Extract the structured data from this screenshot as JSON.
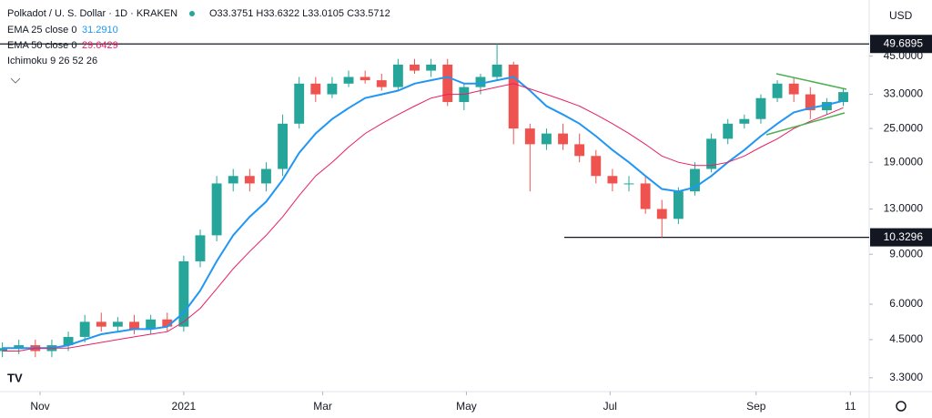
{
  "chart_data": {
    "type": "candlestick",
    "title": "Polkadot / U. S. Dollar · 1D · KRAKEN",
    "ohlc_label": "O33.3751 H33.6322 L33.0105 C33.5712",
    "currency": "USD",
    "x": [
      0,
      7,
      14,
      21,
      28,
      35,
      42,
      49,
      56,
      63,
      70,
      77,
      84,
      91,
      98,
      105,
      112,
      119,
      126,
      133,
      140,
      147,
      154,
      161,
      168,
      175,
      182,
      189,
      196,
      203,
      210,
      217,
      224,
      231,
      238,
      245,
      252,
      259,
      266,
      273,
      280,
      287,
      294,
      301,
      308,
      315,
      322,
      329,
      336,
      343,
      350,
      357
    ],
    "open": [
      4.1,
      4.2,
      4.3,
      4.1,
      4.3,
      4.6,
      5.2,
      5.0,
      5.2,
      4.9,
      5.3,
      5.0,
      8.5,
      10.5,
      16,
      17,
      16,
      18,
      26,
      36,
      33,
      36,
      38,
      37,
      35,
      42,
      40,
      42,
      31,
      35,
      38,
      42,
      25,
      22,
      24,
      22,
      20,
      17,
      16,
      16,
      13,
      12,
      15,
      18,
      23,
      26,
      27,
      32,
      36,
      33,
      29,
      31
    ],
    "high": [
      4.4,
      4.5,
      4.5,
      4.5,
      4.8,
      5.5,
      5.6,
      5.4,
      5.5,
      5.5,
      5.6,
      8.9,
      11,
      17,
      18,
      18,
      19,
      28,
      38,
      38,
      38,
      40,
      40,
      39,
      44,
      44,
      44,
      44,
      36,
      39,
      49.69,
      43,
      26,
      25,
      26,
      24,
      21,
      18,
      17,
      17,
      14,
      15.5,
      19,
      24,
      27,
      28,
      33,
      37,
      38,
      35,
      32,
      34.5
    ],
    "low": [
      3.9,
      4.0,
      3.9,
      3.9,
      4.1,
      4.4,
      4.8,
      4.8,
      4.7,
      4.7,
      4.8,
      4.8,
      8.1,
      10,
      15,
      15,
      15,
      17,
      25,
      31,
      32,
      35,
      36,
      34,
      34,
      39,
      38,
      30,
      29,
      33,
      37,
      22,
      15,
      21,
      21,
      19,
      16,
      15,
      15,
      12.5,
      10.33,
      11.5,
      14.5,
      17.5,
      22,
      25,
      26,
      31,
      31,
      27,
      28,
      30
    ],
    "close": [
      4.2,
      4.3,
      4.1,
      4.3,
      4.6,
      5.2,
      5.0,
      5.2,
      4.9,
      5.3,
      5.0,
      8.5,
      10.5,
      16,
      17,
      16,
      18,
      26,
      36,
      33,
      36,
      38,
      37,
      35,
      42,
      40,
      42,
      31,
      35,
      38,
      42,
      25,
      22,
      24,
      22,
      20,
      17,
      16,
      16,
      13,
      12,
      15,
      18,
      23,
      26,
      27,
      32,
      36,
      33,
      29,
      31,
      33.6
    ],
    "up_color": "#26a69a",
    "down_color": "#ef5350",
    "series": [
      {
        "name": "EMA 25 close 0",
        "last": "31.2910",
        "color": "#2196f3",
        "values": [
          4.2,
          4.2,
          4.2,
          4.2,
          4.3,
          4.5,
          4.7,
          4.8,
          4.9,
          4.9,
          5.0,
          5.6,
          6.7,
          8.5,
          10.5,
          12.2,
          13.8,
          16.5,
          20.5,
          24,
          27,
          29.5,
          32,
          33,
          34,
          36,
          37,
          38,
          36,
          36,
          37,
          38,
          34,
          30,
          28,
          26,
          23.5,
          21,
          19,
          17,
          15.3,
          15,
          15.5,
          17,
          19,
          21,
          23.5,
          26,
          28.5,
          29.5,
          30.3,
          31.3
        ]
      },
      {
        "name": "EMA 50 close 0",
        "last": "29.6429",
        "color": "#e91e63",
        "values": [
          4.1,
          4.1,
          4.2,
          4.2,
          4.2,
          4.3,
          4.4,
          4.5,
          4.6,
          4.7,
          4.8,
          5.2,
          5.8,
          6.8,
          8,
          9.2,
          10.5,
          12.2,
          14.5,
          17,
          19,
          21.5,
          24,
          26,
          28,
          30,
          32,
          33,
          33,
          34,
          35,
          36,
          34.5,
          33,
          31.5,
          30,
          28,
          26,
          24,
          22,
          20,
          19,
          18.5,
          18.5,
          19,
          20,
          21.5,
          23,
          25,
          26.5,
          28,
          29.6
        ]
      }
    ],
    "indicator": "Ichimoku 9 26 52 26",
    "levels": [
      49.6895,
      10.3296
    ],
    "log_scale": true,
    "xlim": [
      -1,
      368
    ],
    "xticks": [
      {
        "value": 16,
        "label": "Nov"
      },
      {
        "value": 77,
        "label": "2021"
      },
      {
        "value": 136,
        "label": "Mar"
      },
      {
        "value": 197,
        "label": "May"
      },
      {
        "value": 258,
        "label": "Jul"
      },
      {
        "value": 320,
        "label": "Sep"
      },
      {
        "value": 360,
        "label": "11"
      }
    ],
    "ylim": [
      2.95,
      71
    ],
    "yticks": [
      {
        "value": 3.3,
        "label": "3.3000"
      },
      {
        "value": 4.5,
        "label": "4.5000"
      },
      {
        "value": 6,
        "label": "6.0000"
      },
      {
        "value": 9,
        "label": "9.0000"
      },
      {
        "value": 13,
        "label": "13.0000"
      },
      {
        "value": 19,
        "label": "19.0000"
      },
      {
        "value": 25,
        "label": "25.0000"
      },
      {
        "value": 33,
        "label": "33.0000"
      },
      {
        "value": 45,
        "label": "45.0000"
      }
    ]
  }
}
